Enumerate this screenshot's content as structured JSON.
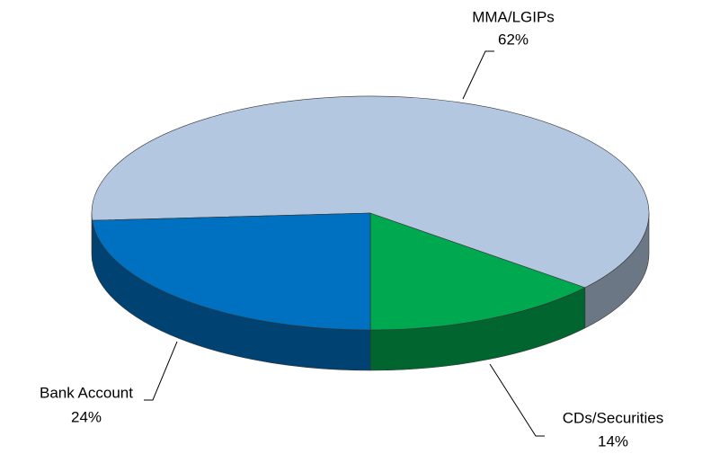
{
  "chart_data": {
    "type": "pie3d",
    "categories": [
      "CDs/Securities",
      "MMA/LGIPs",
      "Bank Account"
    ],
    "values": [
      14,
      62,
      24
    ],
    "value_labels": [
      "14%",
      "62%",
      "24%"
    ],
    "colors": [
      "#00a84f",
      "#b4c7e0",
      "#0070c0"
    ]
  }
}
